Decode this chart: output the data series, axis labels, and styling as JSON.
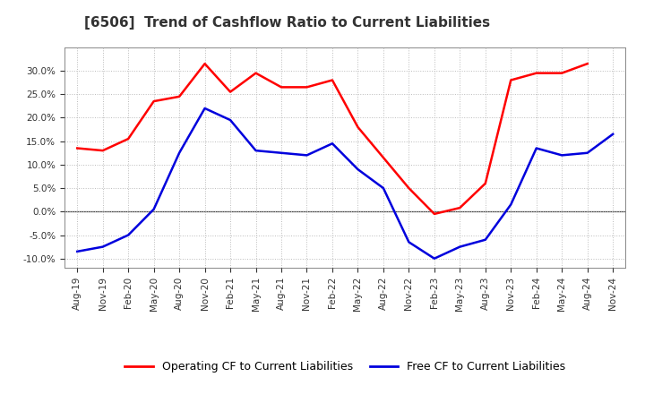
{
  "title": "[6506]  Trend of Cashflow Ratio to Current Liabilities",
  "x_labels": [
    "Aug-19",
    "Nov-19",
    "Feb-20",
    "May-20",
    "Aug-20",
    "Nov-20",
    "Feb-21",
    "May-21",
    "Aug-21",
    "Nov-21",
    "Feb-22",
    "May-22",
    "Aug-22",
    "Nov-22",
    "Feb-23",
    "May-23",
    "Aug-23",
    "Nov-23",
    "Feb-24",
    "May-24",
    "Aug-24",
    "Nov-24"
  ],
  "operating_cf": [
    13.5,
    13.0,
    15.5,
    23.5,
    24.5,
    31.5,
    25.5,
    29.5,
    26.5,
    26.5,
    28.0,
    18.0,
    11.5,
    5.0,
    -0.5,
    0.8,
    6.0,
    28.0,
    29.5,
    29.5,
    31.5,
    null
  ],
  "free_cf": [
    -8.5,
    -7.5,
    -5.0,
    0.5,
    12.5,
    22.0,
    19.5,
    13.0,
    12.5,
    12.0,
    14.5,
    9.0,
    5.0,
    -6.5,
    -10.0,
    -7.5,
    -6.0,
    1.5,
    13.5,
    12.0,
    12.5,
    16.5
  ],
  "operating_color": "#FF0000",
  "free_color": "#0000DD",
  "ylim": [
    -12,
    35
  ],
  "yticks": [
    -10,
    -5,
    0,
    5,
    10,
    15,
    20,
    25,
    30
  ],
  "background_color": "#FFFFFF",
  "grid_color": "#AAAAAA",
  "title_fontsize": 11,
  "axis_fontsize": 7.5,
  "legend_fontsize": 9
}
